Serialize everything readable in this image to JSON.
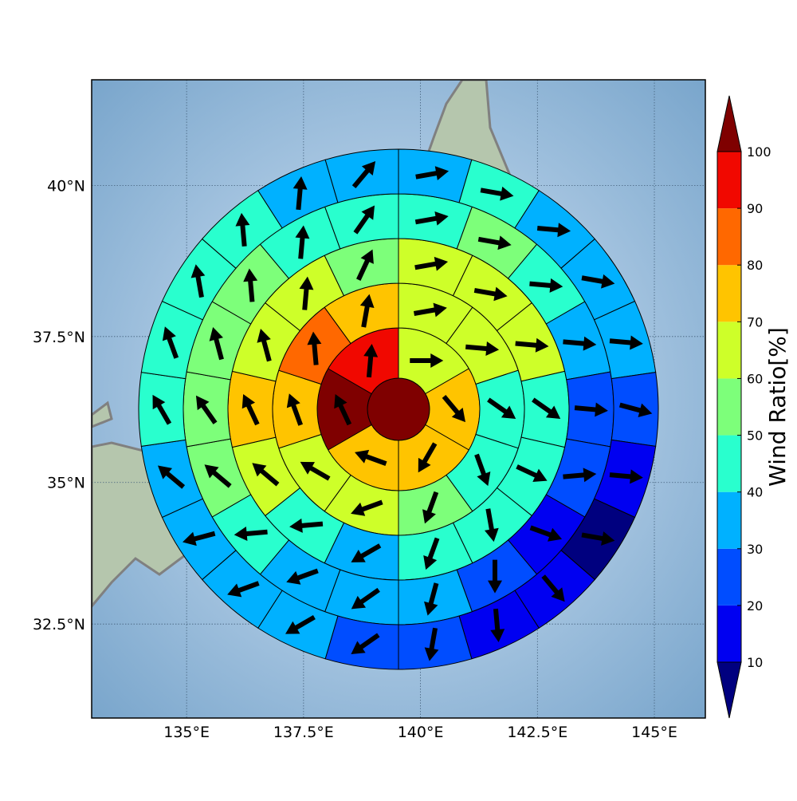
{
  "chart_data": {
    "type": "polar_sector_map",
    "xlim": [
      132.97,
      146.09
    ],
    "ylim": [
      30.8,
      41.7
    ],
    "xticks": [
      {
        "value": 135,
        "label": "135°E"
      },
      {
        "value": 137.5,
        "label": "137.5°E"
      },
      {
        "value": 140,
        "label": "140°E"
      },
      {
        "value": 142.5,
        "label": "142.5°E"
      },
      {
        "value": 145,
        "label": "145°E"
      }
    ],
    "yticks": [
      {
        "value": 32.5,
        "label": "32.5°N"
      },
      {
        "value": 35,
        "label": "35°N"
      },
      {
        "value": 37.5,
        "label": "37.5°N"
      },
      {
        "value": 40,
        "label": "40°N"
      }
    ],
    "grid": true,
    "center_value": 105,
    "rings": [
      {
        "values": [
          65,
          75,
          75,
          75,
          105,
          95
        ],
        "directions": [
          90,
          140,
          210,
          290,
          335,
          5
        ]
      },
      {
        "values": [
          65,
          65,
          45,
          45,
          55,
          65,
          65,
          75,
          85,
          75
        ],
        "directions": [
          80,
          95,
          125,
          160,
          200,
          250,
          300,
          340,
          355,
          10
        ]
      },
      {
        "values": [
          65,
          65,
          65,
          45,
          45,
          45,
          45,
          35,
          45,
          65,
          75,
          65,
          65,
          55
        ],
        "directions": [
          80,
          100,
          95,
          125,
          115,
          170,
          200,
          240,
          265,
          310,
          335,
          345,
          5,
          25
        ]
      },
      {
        "values": [
          45,
          55,
          45,
          35,
          25,
          25,
          15,
          25,
          35,
          35,
          35,
          45,
          55,
          55,
          55,
          55,
          45,
          45
        ],
        "directions": [
          80,
          100,
          95,
          95,
          95,
          85,
          110,
          180,
          195,
          235,
          250,
          265,
          310,
          325,
          345,
          355,
          5,
          35
        ]
      },
      {
        "values": [
          35,
          45,
          35,
          35,
          35,
          25,
          15,
          5,
          15,
          15,
          25,
          25,
          35,
          35,
          35,
          35,
          45,
          45,
          45,
          45,
          35,
          35
        ],
        "directions": [
          80,
          100,
          95,
          100,
          95,
          105,
          95,
          100,
          140,
          175,
          190,
          235,
          240,
          250,
          255,
          310,
          330,
          340,
          350,
          355,
          5,
          40
        ]
      }
    ],
    "colorbar": {
      "label": "Wind Ratio[%]",
      "levels": [
        10,
        20,
        30,
        40,
        50,
        60,
        70,
        80,
        90,
        100
      ],
      "under_color": "#00007f",
      "over_color": "#7f0000",
      "colors": [
        "#0000f1",
        "#004dff",
        "#00b1ff",
        "#29ffce",
        "#7dff7a",
        "#ceff29",
        "#ffc400",
        "#ff6800",
        "#f10800"
      ]
    }
  }
}
